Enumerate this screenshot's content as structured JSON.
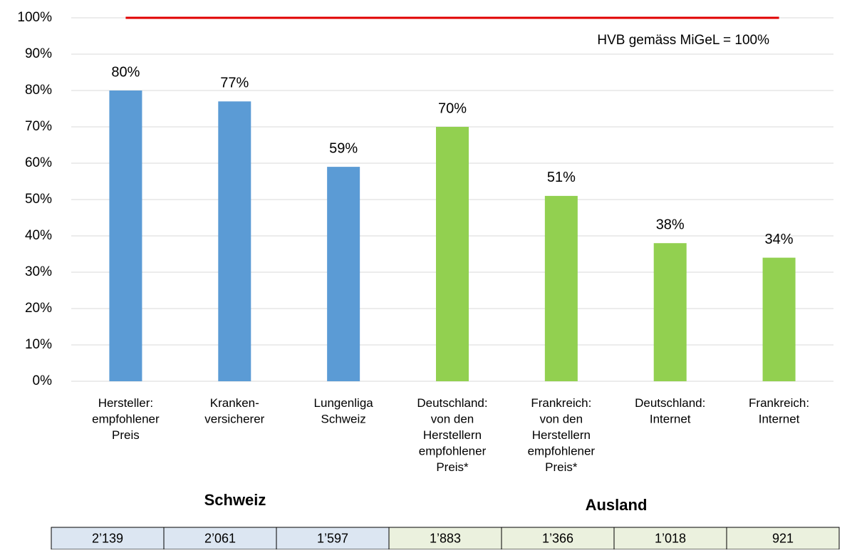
{
  "chart_data": {
    "type": "bar",
    "categories": [
      "Hersteller:\nempfohlener\nPreis",
      "Kranken-\nversicherer",
      "Lungenliga\nSchweiz",
      "Deutschland:\nvon den\nHerstellern\nempfohlener\nPreis*",
      "Frankreich:\nvon den\nHerstellern\nempfohlener\nPreis*",
      "Deutschland:\nInternet",
      "Frankreich:\nInternet"
    ],
    "values": [
      80,
      77,
      59,
      70,
      51,
      38,
      34
    ],
    "value_labels": [
      "80%",
      "77%",
      "59%",
      "70%",
      "51%",
      "38%",
      "34%"
    ],
    "colors": [
      "#5b9bd5",
      "#5b9bd5",
      "#5b9bd5",
      "#92d050",
      "#92d050",
      "#92d050",
      "#92d050"
    ],
    "ylim": [
      0,
      100
    ],
    "yticks": [
      {
        "value": 0,
        "label": "0%"
      },
      {
        "value": 10,
        "label": "10%"
      },
      {
        "value": 20,
        "label": "20%"
      },
      {
        "value": 30,
        "label": "30%"
      },
      {
        "value": 40,
        "label": "40%"
      },
      {
        "value": 50,
        "label": "50%"
      },
      {
        "value": 60,
        "label": "60%"
      },
      {
        "value": 70,
        "label": "70%"
      },
      {
        "value": 80,
        "label": "80%"
      },
      {
        "value": 90,
        "label": "90%"
      },
      {
        "value": 100,
        "label": "100%"
      }
    ],
    "grid": true,
    "reference_line": {
      "value": 100,
      "color": "#e00000",
      "label": "HVB gemäss MiGeL = 100%"
    },
    "group_labels": [
      "Schweiz",
      "Ausland"
    ]
  },
  "table": {
    "cells": [
      {
        "text": "2’139",
        "color": "#dce6f2"
      },
      {
        "text": "2’061",
        "color": "#dce6f2"
      },
      {
        "text": "1’597",
        "color": "#dce6f2"
      },
      {
        "text": "1’883",
        "color": "#ebf1de"
      },
      {
        "text": "1’366",
        "color": "#ebf1de"
      },
      {
        "text": "1’018",
        "color": "#ebf1de"
      },
      {
        "text": "921",
        "color": "#ebf1de"
      }
    ]
  }
}
